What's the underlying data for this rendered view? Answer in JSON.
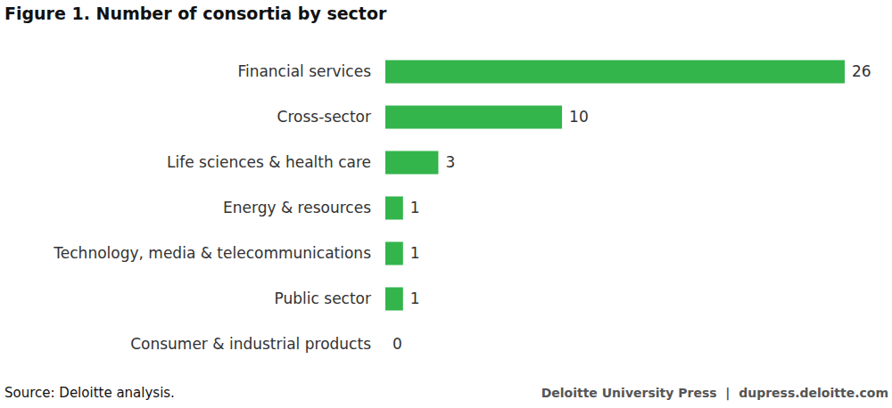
{
  "chart_data": {
    "type": "bar",
    "orientation": "horizontal",
    "title": "Figure 1. Number of consortia by sector",
    "categories": [
      "Financial services",
      "Cross-sector",
      "Life sciences & health care",
      "Energy & resources",
      "Technology, media & telecommunications",
      "Public sector",
      "Consumer & industrial products"
    ],
    "values": [
      26,
      10,
      3,
      1,
      1,
      1,
      0
    ],
    "color": "#33b54c",
    "xlim": [
      0,
      26
    ],
    "data_labels": true,
    "tick_labels": "y",
    "annotations": [
      "Source: Deloitte analysis.",
      "Deloitte University Press  |  dupress.deloitte.com"
    ]
  }
}
